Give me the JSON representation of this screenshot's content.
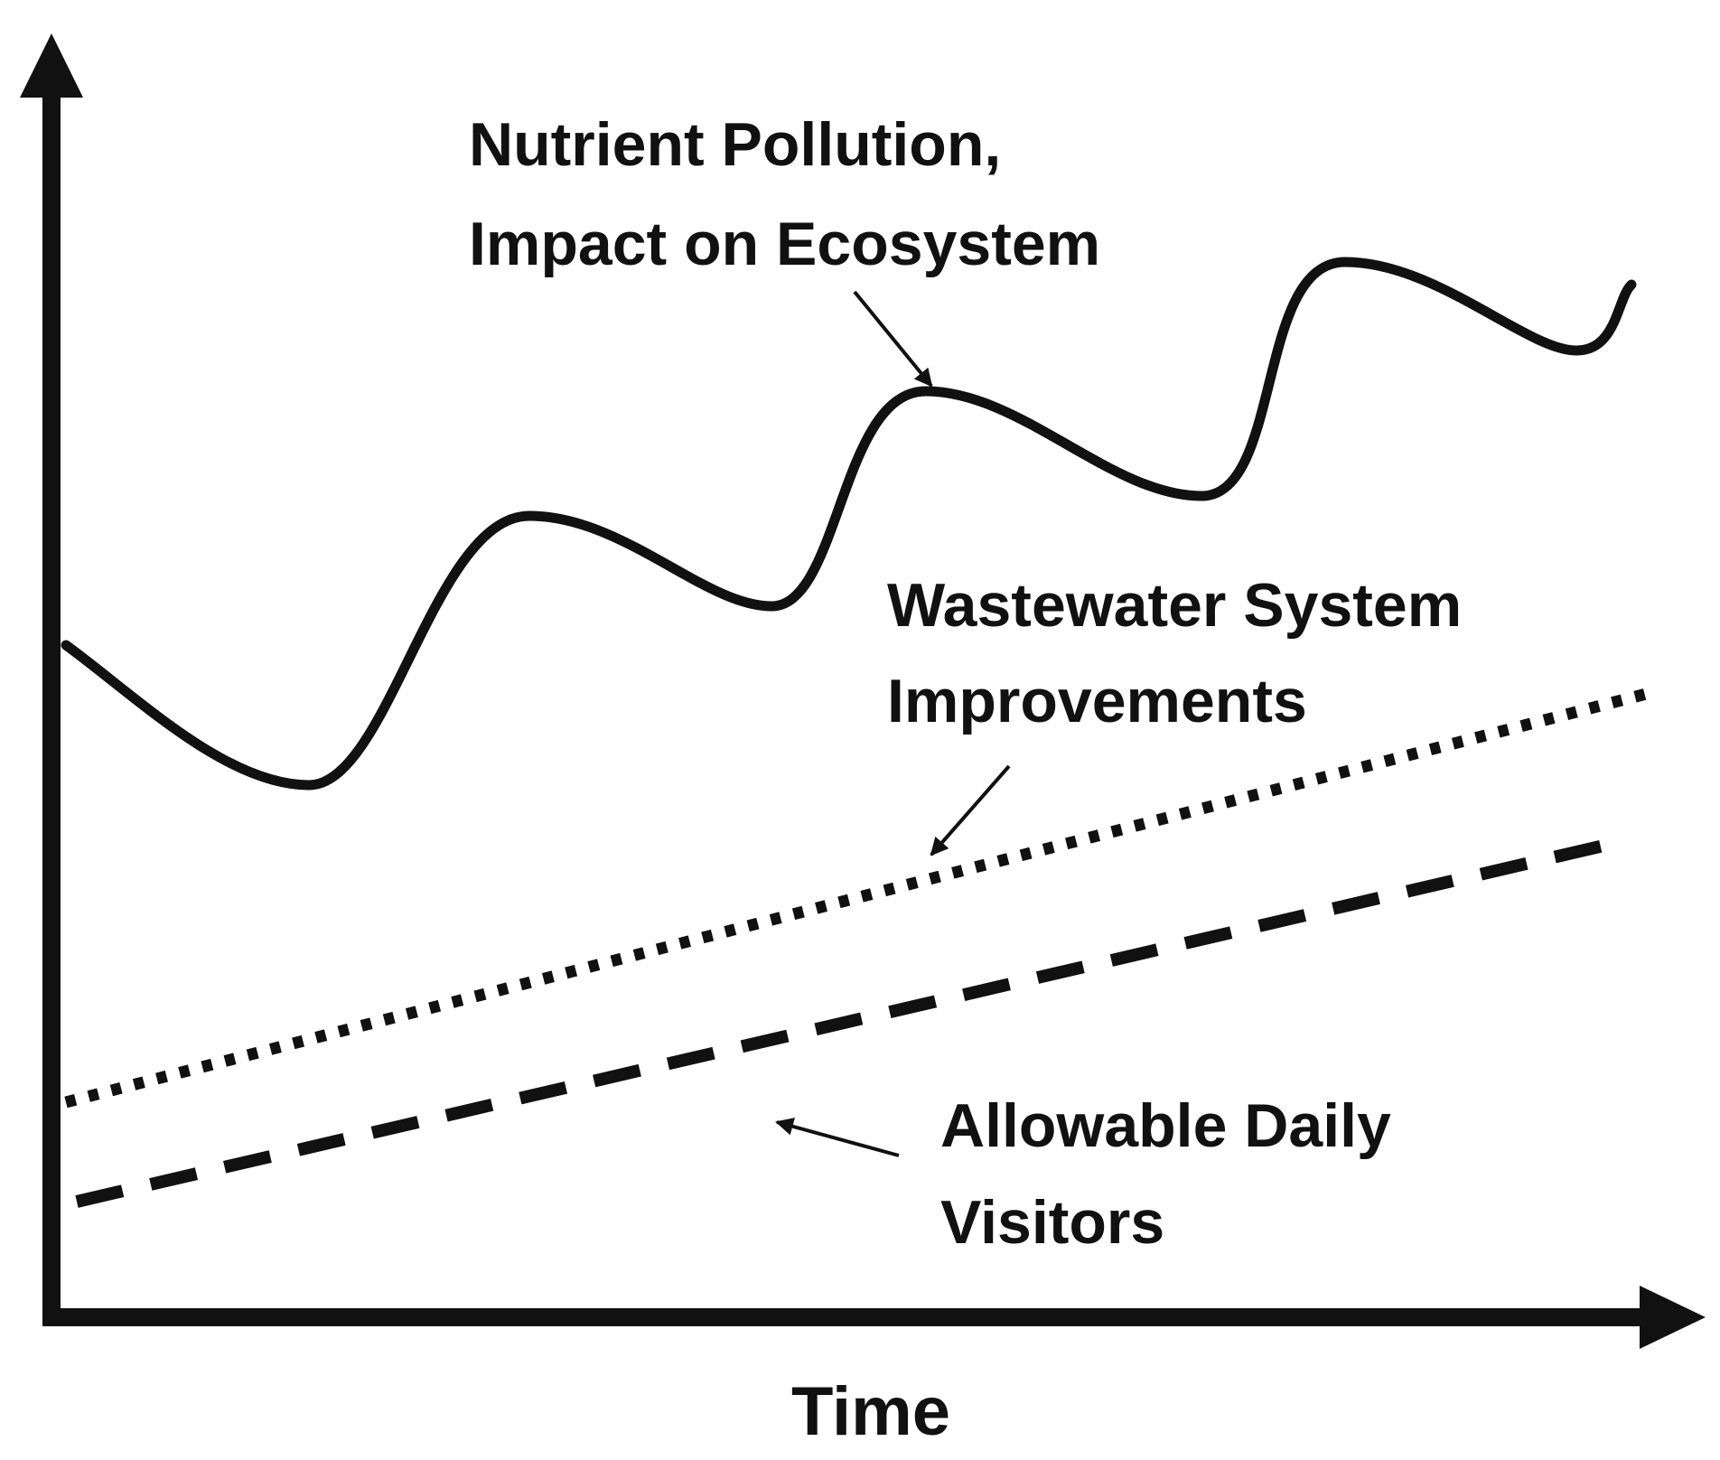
{
  "annotations": [
    {
      "lines": [
        "Nutrient Pollution,",
        "Impact on Ecosystem"
      ]
    },
    {
      "lines": [
        "Wastewater System",
        "Improvements"
      ]
    },
    {
      "lines": [
        "Allowable Daily",
        "Visitors"
      ]
    }
  ],
  "x_axis_label": "Time"
}
